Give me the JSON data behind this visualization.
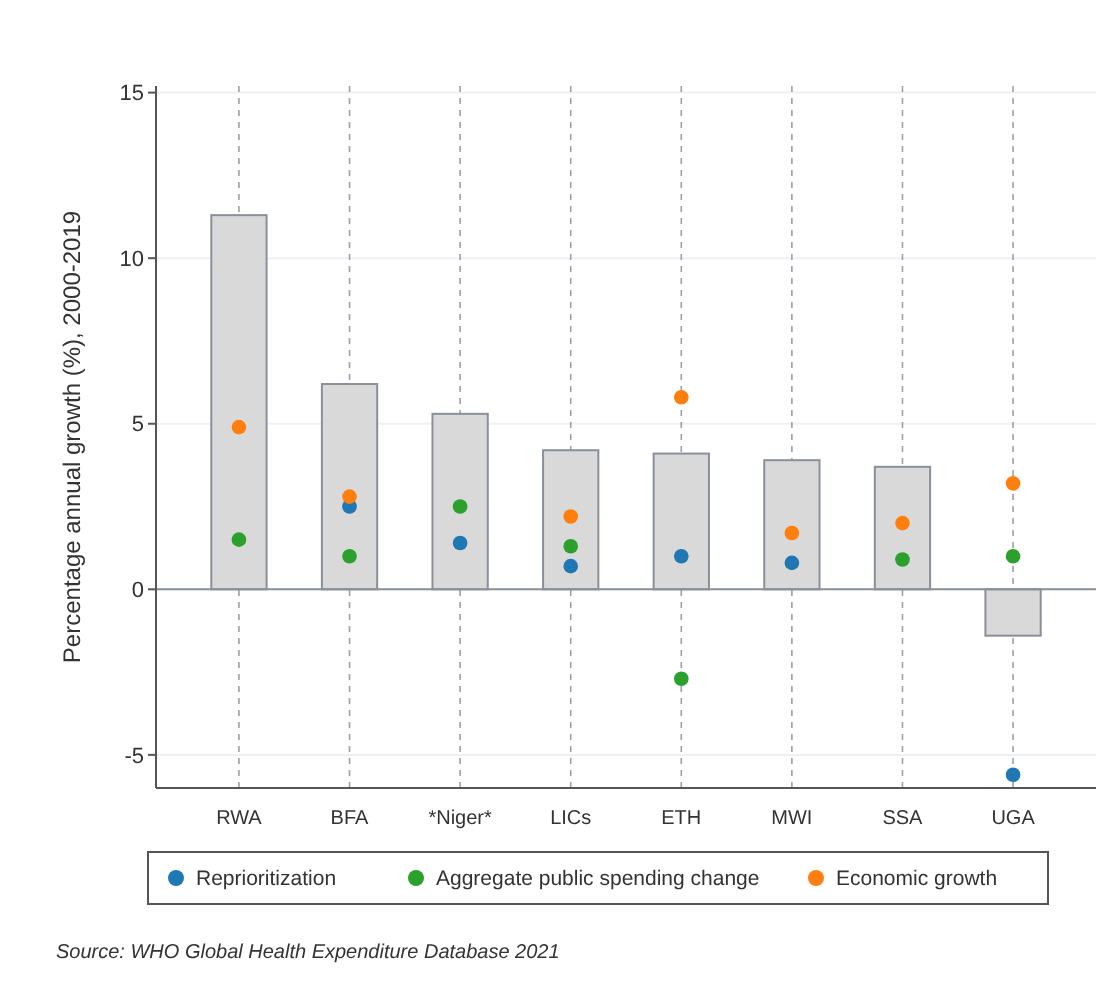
{
  "chart_data": {
    "type": "bar",
    "ylabel": "Percentage annual growth (%), 2000-2019",
    "categories": [
      "RWA",
      "BFA",
      "*Niger*",
      "LICs",
      "ETH",
      "MWI",
      "SSA",
      "UGA"
    ],
    "series": [
      {
        "color": "#d9d9d9",
        "values": [
          11.3,
          6.2,
          5.3,
          4.2,
          4.1,
          3.9,
          3.7,
          -1.4
        ]
      },
      {
        "type": "scatter",
        "name": "Reprioritization",
        "color": "#1f77b4",
        "values": [
          null,
          2.5,
          1.4,
          0.7,
          1.0,
          0.8,
          null,
          -5.6
        ]
      },
      {
        "type": "scatter",
        "name": "Aggregate public spending change",
        "color": "#2ca02c",
        "values": [
          1.5,
          1.0,
          2.5,
          1.3,
          -2.7,
          null,
          0.9,
          1.0
        ]
      },
      {
        "type": "scatter",
        "name": "Economic growth",
        "color": "#ff7f0e",
        "values": [
          4.9,
          2.8,
          null,
          2.2,
          5.8,
          1.7,
          2.0,
          3.2
        ]
      }
    ],
    "ylim": [
      -6,
      15.2
    ],
    "yticks": [
      -5,
      0,
      5,
      10,
      15
    ],
    "grid": true,
    "legend": "bottom",
    "marker": "circle",
    "annotations": [
      "Source: WHO Global Health Expenditure Database 2021"
    ]
  }
}
